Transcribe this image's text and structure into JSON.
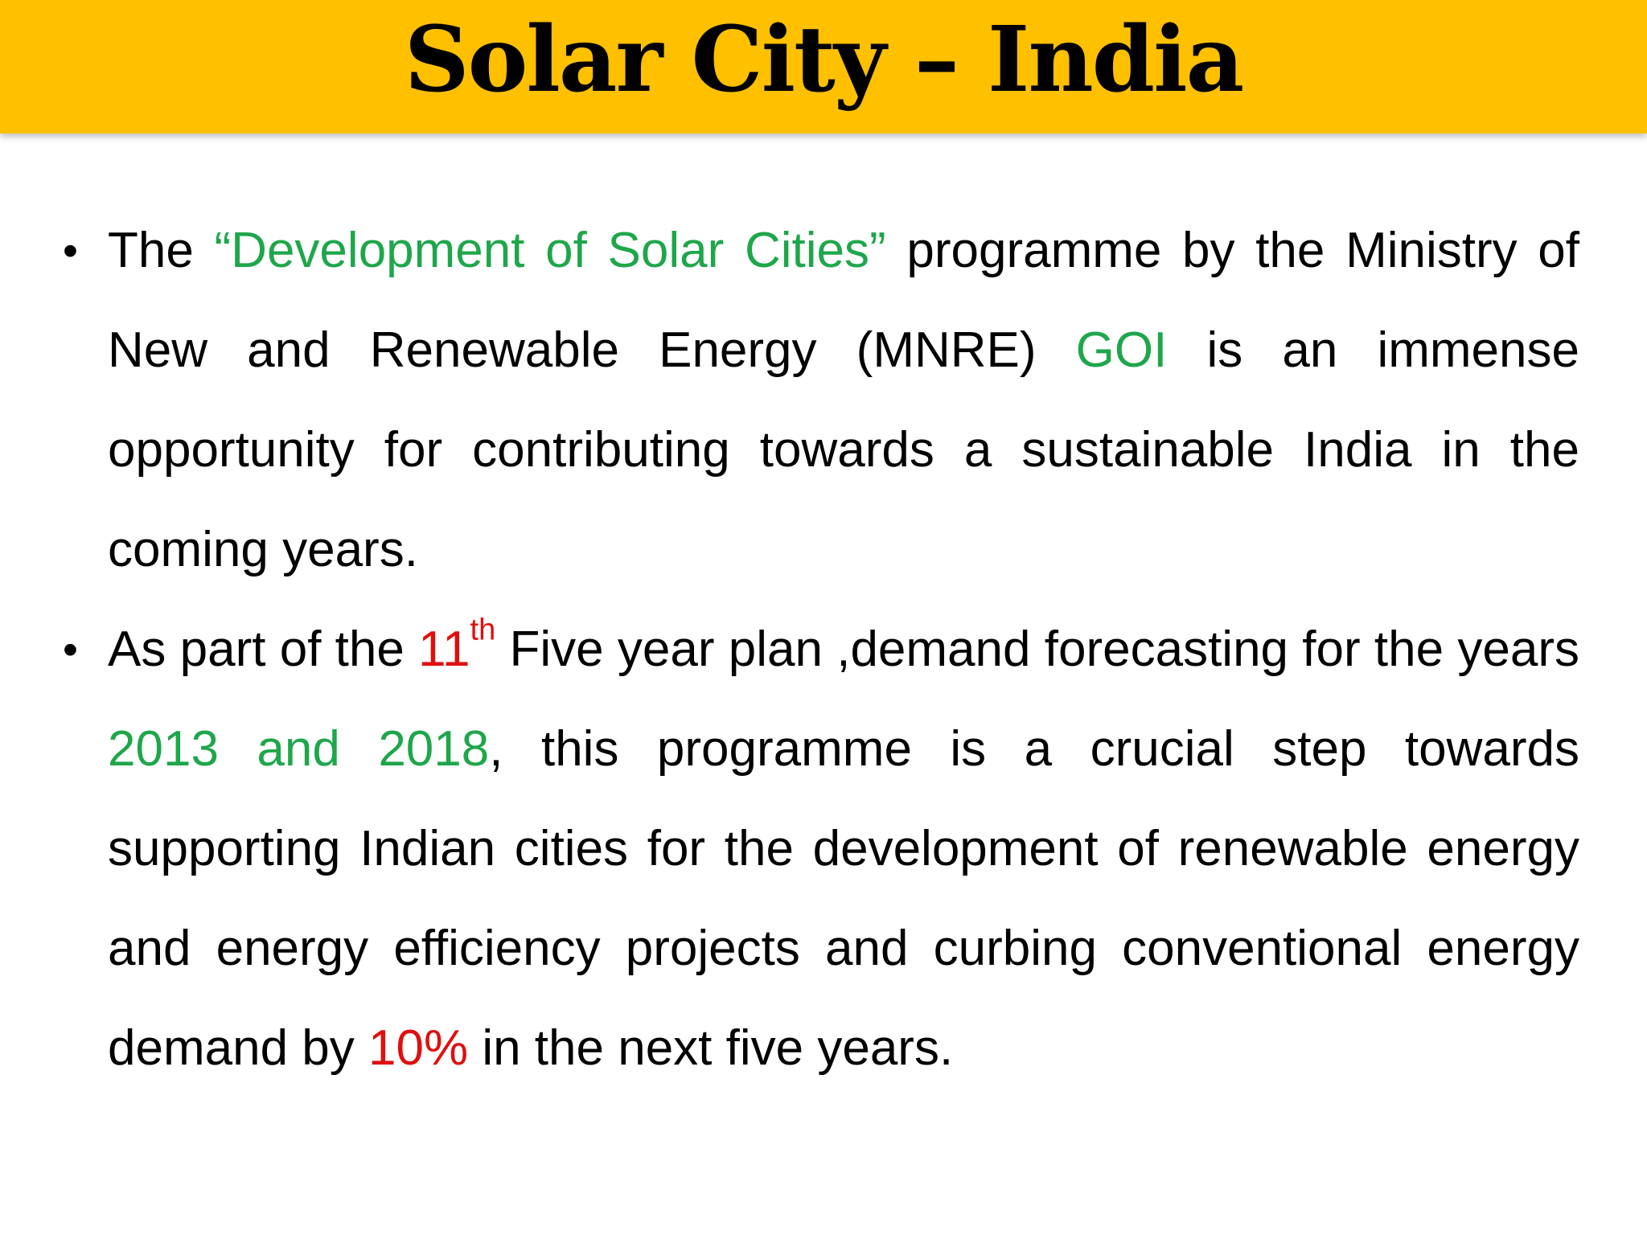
{
  "title": "Solar City – India",
  "colors": {
    "title_bar": "#ffc000",
    "highlight_green": "#1fa64b",
    "highlight_red": "#e00f0f"
  },
  "bullets": [
    {
      "marker": "•",
      "segments": [
        {
          "text": "The ",
          "color": "black"
        },
        {
          "text": "“Development of Solar Cities”",
          "color": "green"
        },
        {
          "text": " programme by the Ministry of New and Renewable Energy (MNRE) ",
          "color": "black"
        },
        {
          "text": "GOI",
          "color": "green"
        },
        {
          "text": " is an immense opportunity for contributing towards a sustainable India in the coming years.",
          "color": "black"
        }
      ]
    },
    {
      "marker": "•",
      "segments": [
        {
          "text": "As part of the ",
          "color": "black"
        },
        {
          "text": "11",
          "color": "red"
        },
        {
          "text": "th",
          "color": "red",
          "sup": true
        },
        {
          "text": " Five year plan ,demand forecasting for the years ",
          "color": "black"
        },
        {
          "text": "2013 and 2018",
          "color": "green"
        },
        {
          "text": ", this programme is a crucial step towards supporting Indian cities for the development of renewable energy and energy efficiency projects and curbing conventional energy demand by ",
          "color": "black"
        },
        {
          "text": "10%",
          "color": "red"
        },
        {
          "text": " in the next five years.",
          "color": "black"
        }
      ]
    }
  ]
}
